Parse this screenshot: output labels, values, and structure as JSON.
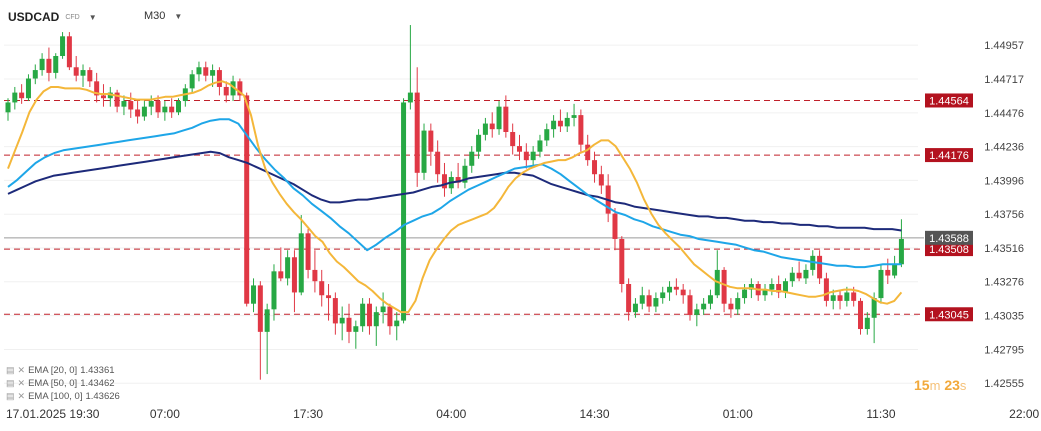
{
  "header": {
    "symbol": "USDCAD",
    "type": "CFD",
    "timeframe": "M30"
  },
  "legend": [
    {
      "label": "EMA [20, 0]",
      "value": "1.43361"
    },
    {
      "label": "EMA [50, 0]",
      "value": "1.43462"
    },
    {
      "label": "EMA [100, 0]",
      "value": "1.43626"
    }
  ],
  "timer": {
    "minutes": "15",
    "m_unit": "m",
    "seconds": "23",
    "s_unit": "s"
  },
  "colors": {
    "bull": "#27a844",
    "bear": "#e03845",
    "ema20": "#f4b73a",
    "ema50": "#1ea6e8",
    "ema100": "#1d2a7a",
    "level": "#c0202a"
  },
  "chart_data": {
    "type": "candlestick",
    "symbol": "USDCAD",
    "timeframe": "M30",
    "ylim": [
      1.4245,
      1.4515
    ],
    "y_ticks": [
      "1.44957",
      "1.44717",
      "1.44476",
      "1.44236",
      "1.43996",
      "1.43756",
      "1.43516",
      "1.43276",
      "1.43035",
      "1.42795",
      "1.42555"
    ],
    "x_ticks": [
      {
        "i": 0,
        "label": "17.01.2025  19:30"
      },
      {
        "i": 23,
        "label": "07:00"
      },
      {
        "i": 44,
        "label": "17:30"
      },
      {
        "i": 65,
        "label": "04:00"
      },
      {
        "i": 86,
        "label": "14:30"
      },
      {
        "i": 107,
        "label": "01:00"
      },
      {
        "i": 128,
        "label": "11:30"
      },
      {
        "i": 149,
        "label": "22:00"
      }
    ],
    "levels": [
      "1.44564",
      "1.44176",
      "1.43508",
      "1.43045"
    ],
    "current_price": "1.43588",
    "candles": [
      [
        1.4448,
        1.4458,
        1.4442,
        1.4455
      ],
      [
        1.4455,
        1.4466,
        1.445,
        1.4462
      ],
      [
        1.4462,
        1.4468,
        1.4454,
        1.4458
      ],
      [
        1.4458,
        1.4475,
        1.4456,
        1.4472
      ],
      [
        1.4472,
        1.4482,
        1.4468,
        1.4478
      ],
      [
        1.4478,
        1.449,
        1.4474,
        1.4486
      ],
      [
        1.4486,
        1.4494,
        1.447,
        1.4476
      ],
      [
        1.4476,
        1.449,
        1.4472,
        1.4488
      ],
      [
        1.4488,
        1.4505,
        1.4486,
        1.4502
      ],
      [
        1.4502,
        1.4505,
        1.4478,
        1.448
      ],
      [
        1.448,
        1.4488,
        1.447,
        1.4474
      ],
      [
        1.4474,
        1.4482,
        1.4466,
        1.4478
      ],
      [
        1.4478,
        1.448,
        1.4466,
        1.447
      ],
      [
        1.447,
        1.4476,
        1.4455,
        1.446
      ],
      [
        1.446,
        1.4468,
        1.4452,
        1.4458
      ],
      [
        1.4458,
        1.4466,
        1.4452,
        1.4462
      ],
      [
        1.4462,
        1.4464,
        1.4448,
        1.4452
      ],
      [
        1.4452,
        1.446,
        1.4446,
        1.4456
      ],
      [
        1.4456,
        1.4462,
        1.4444,
        1.445
      ],
      [
        1.445,
        1.4456,
        1.444,
        1.4445
      ],
      [
        1.4445,
        1.4456,
        1.4442,
        1.4452
      ],
      [
        1.4452,
        1.446,
        1.4446,
        1.4456
      ],
      [
        1.4456,
        1.446,
        1.4444,
        1.4448
      ],
      [
        1.4448,
        1.4456,
        1.4442,
        1.4452
      ],
      [
        1.4452,
        1.4458,
        1.4444,
        1.4448
      ],
      [
        1.4448,
        1.4458,
        1.4446,
        1.4456
      ],
      [
        1.4456,
        1.4468,
        1.4452,
        1.4465
      ],
      [
        1.4465,
        1.4478,
        1.4462,
        1.4475
      ],
      [
        1.4475,
        1.4484,
        1.447,
        1.448
      ],
      [
        1.448,
        1.4484,
        1.447,
        1.4474
      ],
      [
        1.4474,
        1.4482,
        1.4466,
        1.4478
      ],
      [
        1.4478,
        1.448,
        1.446,
        1.4466
      ],
      [
        1.4466,
        1.447,
        1.4455,
        1.446
      ],
      [
        1.446,
        1.4474,
        1.4456,
        1.447
      ],
      [
        1.447,
        1.4472,
        1.4456,
        1.446
      ],
      [
        1.446,
        1.4462,
        1.431,
        1.4312
      ],
      [
        1.4312,
        1.433,
        1.4306,
        1.4325
      ],
      [
        1.4325,
        1.4328,
        1.4258,
        1.4292
      ],
      [
        1.4292,
        1.4312,
        1.4262,
        1.4308
      ],
      [
        1.4308,
        1.434,
        1.43,
        1.4335
      ],
      [
        1.4335,
        1.4352,
        1.4328,
        1.433
      ],
      [
        1.433,
        1.435,
        1.4325,
        1.4345
      ],
      [
        1.4345,
        1.435,
        1.4306,
        1.432
      ],
      [
        1.432,
        1.4375,
        1.4318,
        1.4362
      ],
      [
        1.4362,
        1.4365,
        1.433,
        1.4336
      ],
      [
        1.4336,
        1.435,
        1.432,
        1.4328
      ],
      [
        1.4328,
        1.4336,
        1.431,
        1.4318
      ],
      [
        1.4318,
        1.4326,
        1.43,
        1.4316
      ],
      [
        1.4316,
        1.432,
        1.429,
        1.4298
      ],
      [
        1.4298,
        1.431,
        1.4286,
        1.4302
      ],
      [
        1.4302,
        1.4312,
        1.4284,
        1.4292
      ],
      [
        1.4292,
        1.43,
        1.428,
        1.4296
      ],
      [
        1.4296,
        1.4316,
        1.4292,
        1.4312
      ],
      [
        1.4312,
        1.4316,
        1.429,
        1.4296
      ],
      [
        1.4296,
        1.431,
        1.4282,
        1.4306
      ],
      [
        1.4306,
        1.432,
        1.4298,
        1.431
      ],
      [
        1.431,
        1.4312,
        1.429,
        1.4296
      ],
      [
        1.4296,
        1.4306,
        1.4286,
        1.43
      ],
      [
        1.43,
        1.4458,
        1.4298,
        1.4455
      ],
      [
        1.4455,
        1.451,
        1.445,
        1.4462
      ],
      [
        1.4462,
        1.448,
        1.4395,
        1.4405
      ],
      [
        1.4405,
        1.444,
        1.44,
        1.4435
      ],
      [
        1.4435,
        1.444,
        1.441,
        1.442
      ],
      [
        1.442,
        1.4428,
        1.4398,
        1.4404
      ],
      [
        1.4404,
        1.4412,
        1.4388,
        1.4394
      ],
      [
        1.4394,
        1.4406,
        1.439,
        1.4402
      ],
      [
        1.4402,
        1.4412,
        1.4394,
        1.4398
      ],
      [
        1.4398,
        1.4415,
        1.4394,
        1.441
      ],
      [
        1.441,
        1.4424,
        1.4405,
        1.442
      ],
      [
        1.442,
        1.4436,
        1.4415,
        1.4432
      ],
      [
        1.4432,
        1.4444,
        1.4428,
        1.444
      ],
      [
        1.444,
        1.4448,
        1.443,
        1.4436
      ],
      [
        1.4436,
        1.4456,
        1.4432,
        1.4452
      ],
      [
        1.4452,
        1.446,
        1.443,
        1.4434
      ],
      [
        1.4434,
        1.444,
        1.4418,
        1.4424
      ],
      [
        1.4424,
        1.4432,
        1.4414,
        1.442
      ],
      [
        1.442,
        1.4426,
        1.4408,
        1.4414
      ],
      [
        1.4414,
        1.4424,
        1.441,
        1.442
      ],
      [
        1.442,
        1.4432,
        1.4416,
        1.4428
      ],
      [
        1.4428,
        1.444,
        1.4424,
        1.4436
      ],
      [
        1.4436,
        1.4446,
        1.443,
        1.4442
      ],
      [
        1.4442,
        1.445,
        1.4434,
        1.4438
      ],
      [
        1.4438,
        1.4448,
        1.4434,
        1.4444
      ],
      [
        1.4444,
        1.4454,
        1.4438,
        1.4446
      ],
      [
        1.4446,
        1.445,
        1.442,
        1.4425
      ],
      [
        1.4425,
        1.4432,
        1.441,
        1.4414
      ],
      [
        1.4414,
        1.442,
        1.4398,
        1.4404
      ],
      [
        1.4404,
        1.441,
        1.439,
        1.4396
      ],
      [
        1.4396,
        1.4404,
        1.437,
        1.4376
      ],
      [
        1.4376,
        1.438,
        1.435,
        1.4358
      ],
      [
        1.4358,
        1.436,
        1.432,
        1.4326
      ],
      [
        1.4326,
        1.433,
        1.43,
        1.4306
      ],
      [
        1.4306,
        1.4316,
        1.4302,
        1.4312
      ],
      [
        1.4312,
        1.4324,
        1.4308,
        1.4318
      ],
      [
        1.4318,
        1.4322,
        1.4306,
        1.431
      ],
      [
        1.431,
        1.432,
        1.4306,
        1.4316
      ],
      [
        1.4316,
        1.4324,
        1.4312,
        1.432
      ],
      [
        1.432,
        1.4328,
        1.4314,
        1.4324
      ],
      [
        1.4324,
        1.433,
        1.4318,
        1.4322
      ],
      [
        1.4322,
        1.4326,
        1.4312,
        1.4318
      ],
      [
        1.4318,
        1.4322,
        1.43,
        1.4304
      ],
      [
        1.4304,
        1.4312,
        1.4296,
        1.4308
      ],
      [
        1.4308,
        1.4316,
        1.4304,
        1.4312
      ],
      [
        1.4312,
        1.4322,
        1.4308,
        1.4318
      ],
      [
        1.4318,
        1.435,
        1.4316,
        1.4336
      ],
      [
        1.4336,
        1.4338,
        1.4306,
        1.4312
      ],
      [
        1.4312,
        1.4316,
        1.4302,
        1.4308
      ],
      [
        1.4308,
        1.432,
        1.4304,
        1.4316
      ],
      [
        1.4316,
        1.4326,
        1.4312,
        1.4322
      ],
      [
        1.4322,
        1.433,
        1.4316,
        1.4326
      ],
      [
        1.4326,
        1.4328,
        1.4314,
        1.4318
      ],
      [
        1.4318,
        1.4326,
        1.4314,
        1.4322
      ],
      [
        1.4322,
        1.433,
        1.4318,
        1.4326
      ],
      [
        1.4326,
        1.4332,
        1.4316,
        1.432
      ],
      [
        1.432,
        1.433,
        1.4316,
        1.4328
      ],
      [
        1.4328,
        1.4338,
        1.4324,
        1.4334
      ],
      [
        1.4334,
        1.4342,
        1.4328,
        1.433
      ],
      [
        1.433,
        1.434,
        1.4326,
        1.4336
      ],
      [
        1.4336,
        1.435,
        1.4332,
        1.4346
      ],
      [
        1.4346,
        1.435,
        1.4326,
        1.433
      ],
      [
        1.433,
        1.4334,
        1.431,
        1.4314
      ],
      [
        1.4314,
        1.4322,
        1.4308,
        1.4318
      ],
      [
        1.4318,
        1.4322,
        1.4308,
        1.4314
      ],
      [
        1.4314,
        1.4324,
        1.431,
        1.432
      ],
      [
        1.432,
        1.4324,
        1.431,
        1.4314
      ],
      [
        1.4314,
        1.4316,
        1.429,
        1.4294
      ],
      [
        1.4294,
        1.4306,
        1.429,
        1.4302
      ],
      [
        1.4302,
        1.432,
        1.4284,
        1.4316
      ],
      [
        1.4316,
        1.434,
        1.4312,
        1.4336
      ],
      [
        1.4336,
        1.4344,
        1.4326,
        1.4332
      ],
      [
        1.4332,
        1.4346,
        1.433,
        1.434
      ],
      [
        1.434,
        1.4372,
        1.4338,
        1.4358
      ]
    ],
    "ema20": [
      1.4408,
      1.4421,
      1.4434,
      1.4448,
      1.4457,
      1.4463,
      1.4466,
      1.4466,
      1.4465,
      1.4465,
      1.4465,
      1.4464,
      1.4462,
      1.4461,
      1.4461,
      1.446,
      1.4459,
      1.4458,
      1.4457,
      1.4457,
      1.4457,
      1.4458,
      1.4459,
      1.4459,
      1.446,
      1.4461,
      1.4462,
      1.4464,
      1.4467,
      1.4469,
      1.447,
      1.4468,
      1.4464,
      1.446,
      1.4446,
      1.4424,
      1.4408,
      1.4398,
      1.439,
      1.4383,
      1.4377,
      1.4372,
      1.4366,
      1.436,
      1.4356,
      1.4348,
      1.4342,
      1.4338,
      1.4333,
      1.4328,
      1.4325,
      1.4321,
      1.4316,
      1.4312,
      1.4309,
      1.4306,
      1.4306,
      1.4314,
      1.433,
      1.4343,
      1.4351,
      1.4358,
      1.4364,
      1.4368,
      1.437,
      1.4372,
      1.4374,
      1.4376,
      1.438,
      1.4387,
      1.4395,
      1.4401,
      1.4405,
      1.4408,
      1.441,
      1.4412,
      1.4413,
      1.4414,
      1.4414,
      1.4416,
      1.4419,
      1.4421,
      1.4425,
      1.4428,
      1.4428,
      1.4424,
      1.4416,
      1.4408,
      1.4398,
      1.4386,
      1.4376,
      1.4368,
      1.4362,
      1.4357,
      1.4352,
      1.4346,
      1.434,
      1.4336,
      1.4332,
      1.4328,
      1.4326,
      1.4324,
      1.4323,
      1.4323,
      1.4323,
      1.4322,
      1.4322,
      1.4321,
      1.4321,
      1.432,
      1.4319,
      1.4318,
      1.4317,
      1.4317,
      1.4318,
      1.432,
      1.4321,
      1.4322,
      1.4322,
      1.4321,
      1.4319,
      1.4316,
      1.4313,
      1.4312,
      1.4314,
      1.432
    ],
    "ema50": [
      1.4395,
      1.44,
      1.4406,
      1.4412,
      1.4416,
      1.4419,
      1.4421,
      1.4422,
      1.4423,
      1.4424,
      1.4425,
      1.4426,
      1.4427,
      1.4428,
      1.4429,
      1.443,
      1.4431,
      1.4432,
      1.4433,
      1.4435,
      1.4437,
      1.444,
      1.4442,
      1.4443,
      1.4443,
      1.444,
      1.4431,
      1.4422,
      1.4414,
      1.4407,
      1.4401,
      1.4394,
      1.4389,
      1.4383,
      1.4378,
      1.4373,
      1.4367,
      1.4362,
      1.4356,
      1.435,
      1.4354,
      1.4359,
      1.4363,
      1.4368,
      1.4371,
      1.4374,
      1.4376,
      1.438,
      1.4385,
      1.4389,
      1.4393,
      1.4396,
      1.4399,
      1.4402,
      1.4405,
      1.4408,
      1.4409,
      1.441,
      1.4411,
      1.4408,
      1.4404,
      1.4399,
      1.4394,
      1.4389,
      1.4385,
      1.4381,
      1.4377,
      1.4375,
      1.4372,
      1.437,
      1.4367,
      1.4365,
      1.4363,
      1.4361,
      1.436,
      1.4358,
      1.4357,
      1.4356,
      1.4355,
      1.4354,
      1.4352,
      1.435,
      1.4349,
      1.4347,
      1.4345,
      1.4344,
      1.4343,
      1.4342,
      1.4341,
      1.434,
      1.4339,
      1.4339,
      1.4338,
      1.4338,
      1.4339,
      1.434,
      1.434,
      1.434
    ],
    "ema100": [
      1.439,
      1.4393,
      1.4396,
      1.4399,
      1.4401,
      1.4403,
      1.4404,
      1.4405,
      1.4406,
      1.4407,
      1.4408,
      1.4409,
      1.441,
      1.4411,
      1.4412,
      1.4413,
      1.4414,
      1.4415,
      1.4416,
      1.4417,
      1.4418,
      1.4419,
      1.442,
      1.4419,
      1.4416,
      1.4414,
      1.4412,
      1.4409,
      1.4406,
      1.4403,
      1.44,
      1.4397,
      1.4393,
      1.4389,
      1.4386,
      1.4384,
      1.4384,
      1.4385,
      1.4386,
      1.4386,
      1.4387,
      1.4388,
      1.4389,
      1.439,
      1.4391,
      1.4393,
      1.4395,
      1.4396,
      1.4398,
      1.4399,
      1.4401,
      1.4402,
      1.4403,
      1.4404,
      1.4405,
      1.4405,
      1.4404,
      1.4403,
      1.44,
      1.4397,
      1.4395,
      1.4393,
      1.4391,
      1.4389,
      1.4388,
      1.4386,
      1.4384,
      1.4383,
      1.4381,
      1.438,
      1.4379,
      1.4378,
      1.4377,
      1.4376,
      1.4375,
      1.4374,
      1.4374,
      1.4373,
      1.4373,
      1.4372,
      1.4371,
      1.4371,
      1.437,
      1.437,
      1.4369,
      1.4369,
      1.4368,
      1.4368,
      1.4367,
      1.4367,
      1.4366,
      1.4366,
      1.4366,
      1.4366,
      1.4365,
      1.4365,
      1.4365,
      1.4364
    ]
  }
}
